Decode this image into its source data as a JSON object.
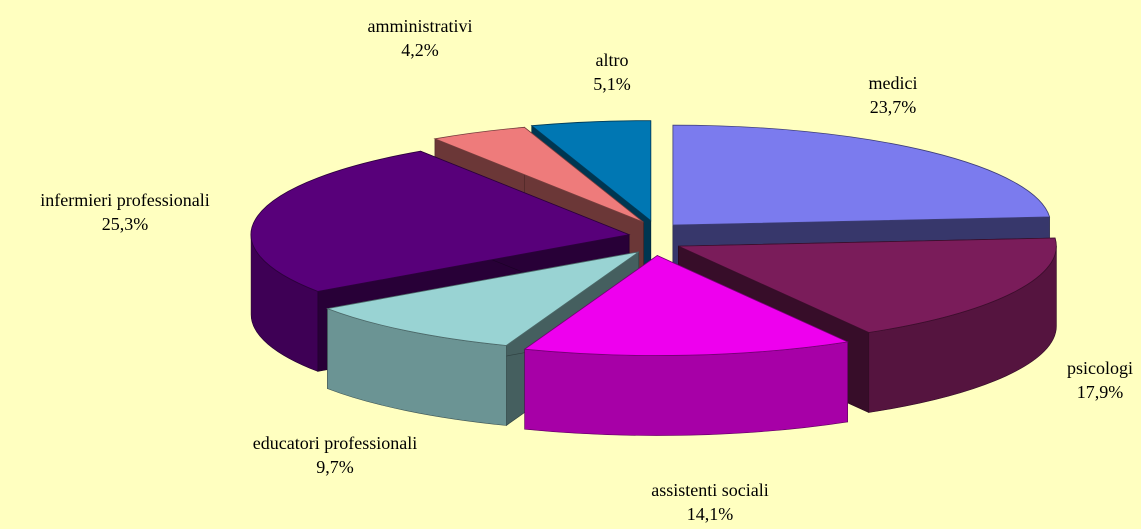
{
  "chart_data": {
    "type": "pie",
    "categories": [
      "medici",
      "psicologi",
      "assistenti sociali",
      "educatori professionali",
      "infermieri professionali",
      "amministrativi",
      "altro"
    ],
    "values": [
      23.7,
      17.9,
      14.1,
      9.7,
      25.3,
      4.2,
      5.1
    ],
    "value_labels": [
      "23,7%",
      "17,9%",
      "14,1%",
      "9,7%",
      "25,3%",
      "4,2%",
      "5,1%"
    ],
    "colors": [
      "#7b7bee",
      "#7a1c5a",
      "#ee00ee",
      "#99d3d3",
      "#58007a",
      "#ee7b7b",
      "#0077b3"
    ]
  }
}
